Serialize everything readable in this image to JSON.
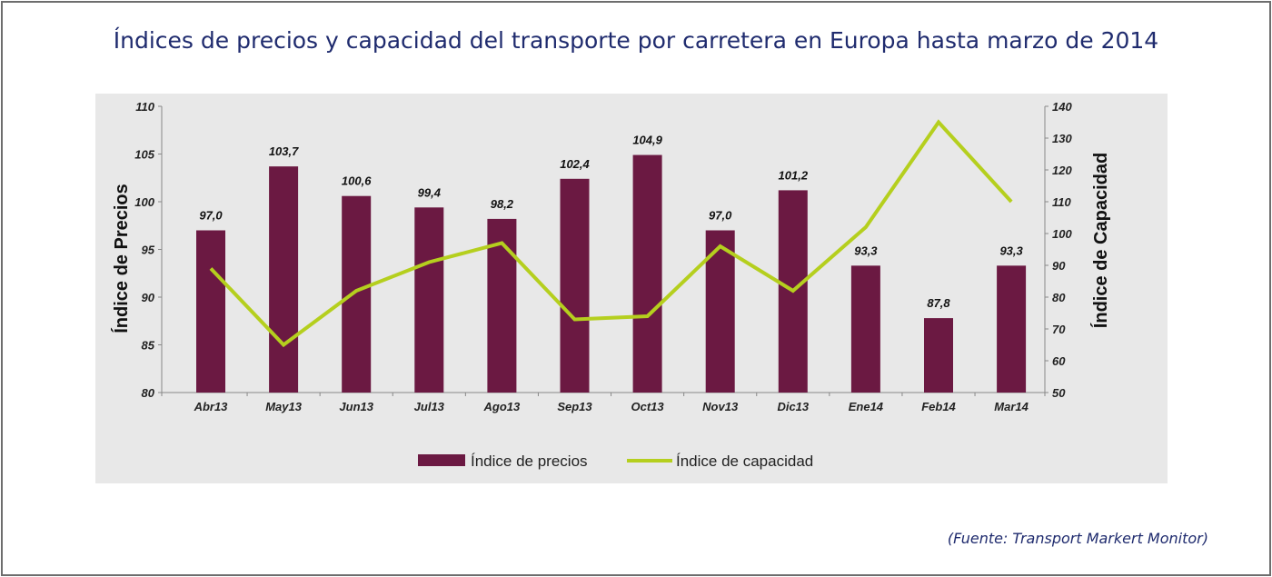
{
  "title": "Índices de precios y capacidad del transporte por carretera en Europa hasta marzo de 2014",
  "source": "(Fuente: Transport Markert Monitor)",
  "colors": {
    "bars": "#6b1942",
    "line": "#b5cf1e",
    "title": "#1f2b6e",
    "panel": "#e8e8e8"
  },
  "chart_data": {
    "type": "bar+line",
    "categories": [
      "Abr13",
      "May13",
      "Jun13",
      "Jul13",
      "Ago13",
      "Sep13",
      "Oct13",
      "Nov13",
      "Dic13",
      "Ene14",
      "Feb14",
      "Mar14"
    ],
    "series": [
      {
        "name": "Índice de precios",
        "type": "bar",
        "axis": "left",
        "values": [
          97.0,
          103.7,
          100.6,
          99.4,
          98.2,
          102.4,
          104.9,
          97.0,
          101.2,
          93.3,
          87.8,
          93.3
        ],
        "labels": [
          "97,0",
          "103,7",
          "100,6",
          "99,4",
          "98,2",
          "102,4",
          "104,9",
          "97,0",
          "101,2",
          "93,3",
          "87,8",
          "93,3"
        ]
      },
      {
        "name": "Índice de capacidad",
        "type": "line",
        "axis": "right",
        "values": [
          89,
          65,
          82,
          91,
          97,
          73,
          74,
          96,
          82,
          102,
          135,
          110
        ]
      }
    ],
    "ylabel_left": "Índice de Precios",
    "ylabel_right": "Índice de Capacidad",
    "ylim_left": [
      80,
      110
    ],
    "yticks_left": [
      80,
      85,
      90,
      95,
      100,
      105,
      110
    ],
    "ylim_right": [
      50,
      140
    ],
    "yticks_right": [
      50,
      60,
      70,
      80,
      90,
      100,
      110,
      120,
      130,
      140
    ],
    "legend_position": "bottom-center",
    "grid": false
  }
}
